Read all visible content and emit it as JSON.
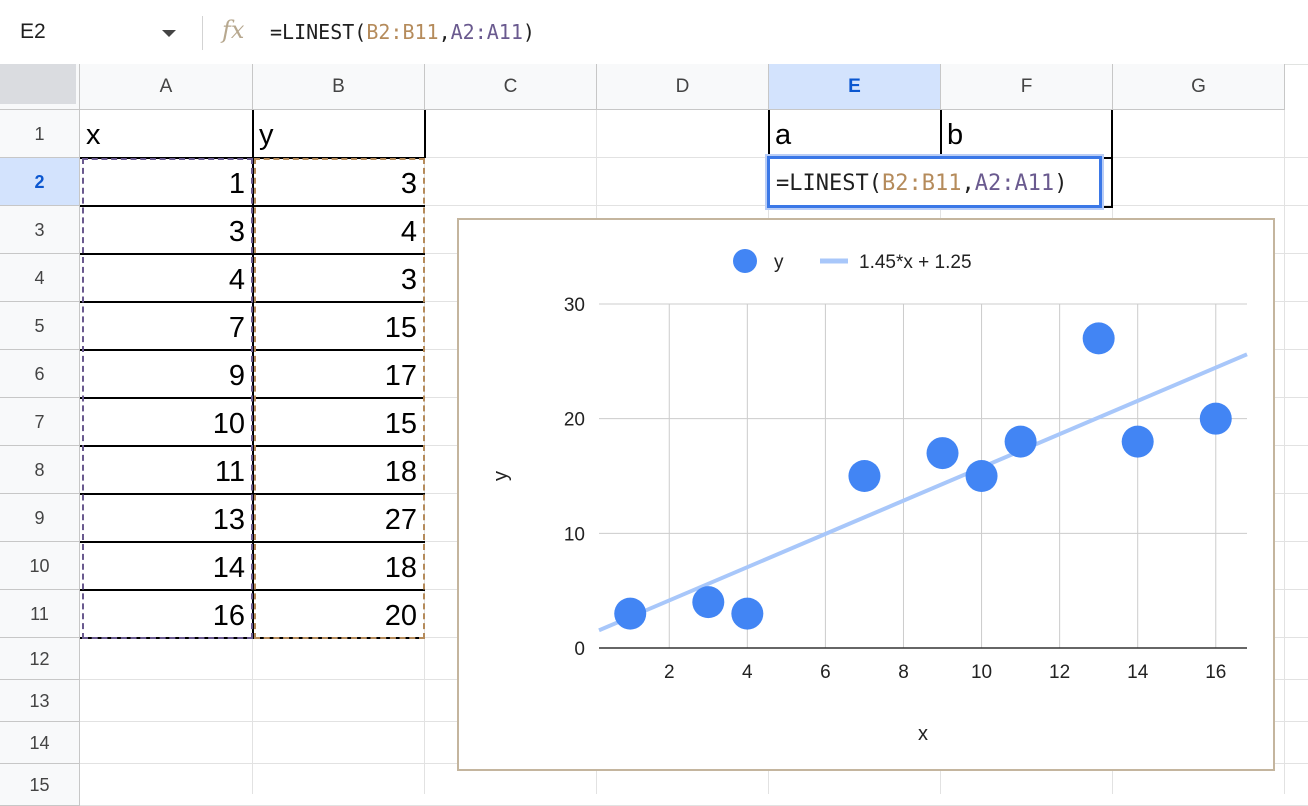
{
  "formula_bar": {
    "cell_ref": "E2",
    "fx_icon": "fx",
    "formula_parts": [
      "=LINEST(",
      "B2:B11",
      ",",
      "A2:A11",
      ")"
    ]
  },
  "columns": [
    "A",
    "B",
    "C",
    "D",
    "E",
    "F",
    "G"
  ],
  "selected_column": "E",
  "rows": [
    "1",
    "2",
    "3",
    "4",
    "5",
    "6",
    "7",
    "8",
    "9",
    "10",
    "11",
    "12",
    "13",
    "14",
    "15"
  ],
  "selected_row": "2",
  "cells": {
    "A1": "x",
    "B1": "y",
    "E1": "a",
    "F1": "b",
    "x_values": [
      "1",
      "3",
      "4",
      "7",
      "9",
      "10",
      "11",
      "13",
      "14",
      "16"
    ],
    "y_values": [
      "3",
      "4",
      "3",
      "15",
      "17",
      "15",
      "18",
      "27",
      "18",
      "20"
    ]
  },
  "editing_cell": {
    "formula_parts": [
      "=LINEST(",
      "B2:B11",
      ",",
      "A2:A11",
      ")"
    ]
  },
  "colors": {
    "range1": "#b58b5b",
    "range2": "#6a5a8f",
    "selection": "#3b78e7",
    "point": "#4285f4",
    "trendline": "#a8c7fa"
  },
  "chart_data": {
    "type": "scatter",
    "series": [
      {
        "name": "y",
        "x": [
          1,
          3,
          4,
          7,
          9,
          10,
          11,
          13,
          14,
          16
        ],
        "y": [
          3,
          4,
          3,
          15,
          17,
          15,
          18,
          27,
          18,
          20
        ]
      }
    ],
    "trendline": {
      "label": "1.45*x + 1.25",
      "slope": 1.45,
      "intercept": 1.25
    },
    "xlabel": "x",
    "ylabel": "y",
    "xlim": [
      0.2,
      16.8
    ],
    "ylim": [
      0,
      30
    ],
    "xticks": [
      2,
      4,
      6,
      8,
      10,
      12,
      14,
      16
    ],
    "yticks": [
      0,
      10,
      20,
      30
    ],
    "grid": true,
    "legend": "top"
  }
}
